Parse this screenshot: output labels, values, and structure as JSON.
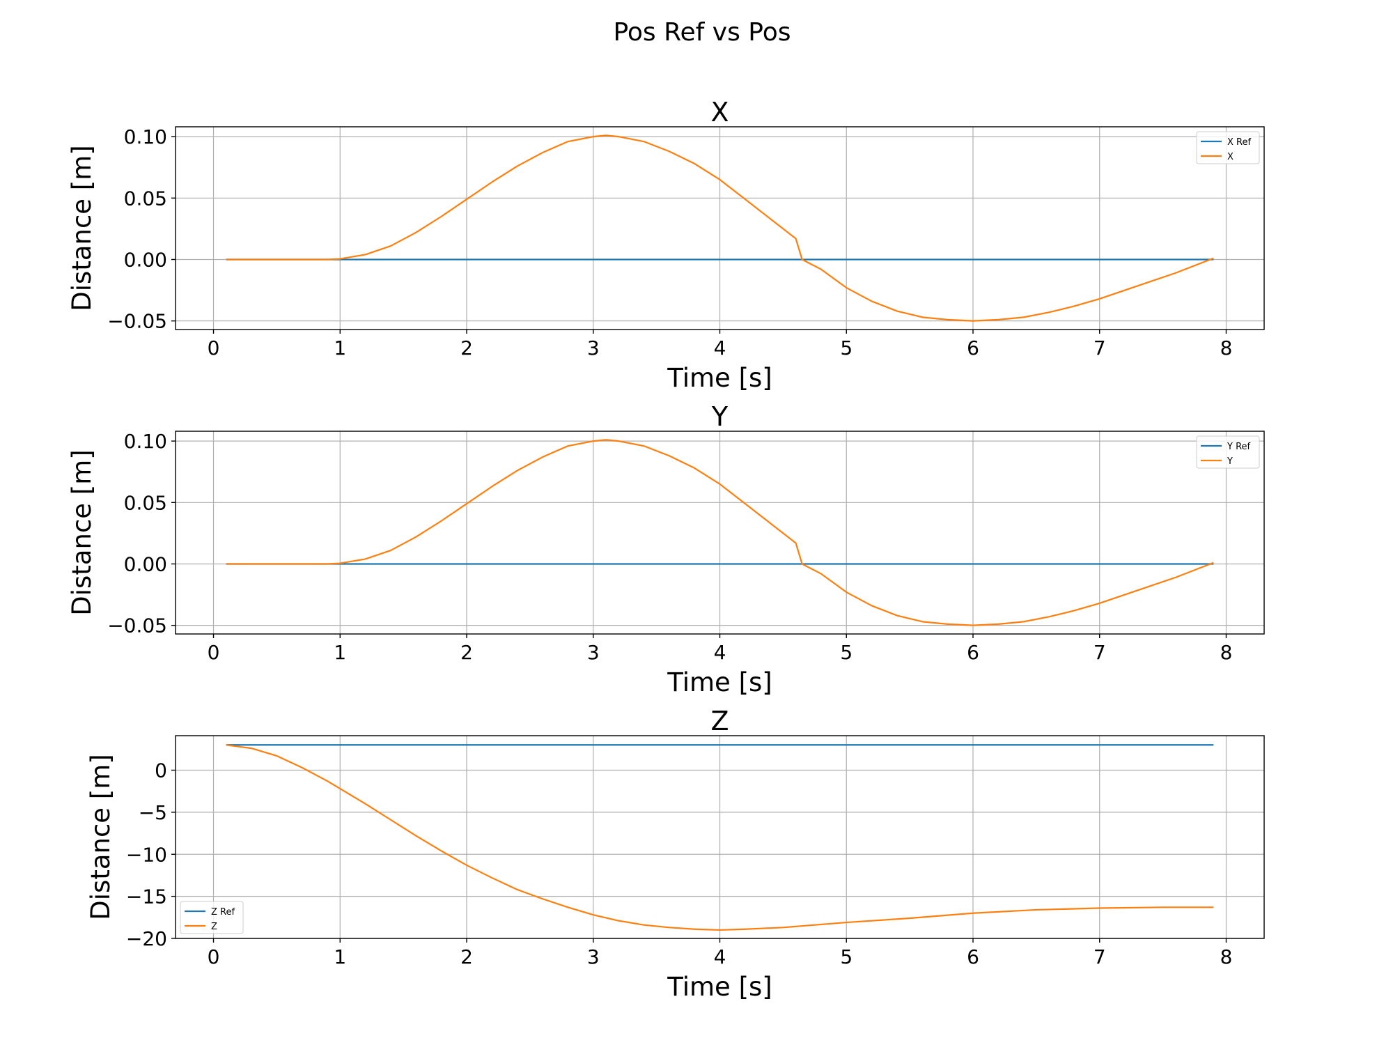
{
  "figure": {
    "suptitle": "Pos Ref vs Pos"
  },
  "colors": {
    "ref": "#1f77b4",
    "actual": "#ff7f0e",
    "grid": "#b0b0b0"
  },
  "chart_data": [
    {
      "type": "line",
      "title": "X",
      "xlabel": "Time [s]",
      "ylabel": "Distance [m]",
      "xlim": [
        -0.3,
        8.3
      ],
      "ylim": [
        -0.057,
        0.108
      ],
      "xticks": [
        0,
        1,
        2,
        3,
        4,
        5,
        6,
        7,
        8
      ],
      "xtick_labels": [
        "0",
        "1",
        "2",
        "3",
        "4",
        "5",
        "6",
        "7",
        "8"
      ],
      "yticks": [
        -0.05,
        0.0,
        0.05,
        0.1
      ],
      "ytick_labels": [
        "−0.05",
        "0.00",
        "0.05",
        "0.10"
      ],
      "grid": true,
      "legend": "upper-right",
      "series": [
        {
          "name": "X Ref",
          "color": "#1f77b4",
          "x": [
            0.1,
            7.9
          ],
          "y": [
            0.0,
            0.0
          ]
        },
        {
          "name": "X",
          "color": "#ff7f0e",
          "x": [
            0.1,
            0.5,
            0.9,
            1.0,
            1.2,
            1.4,
            1.6,
            1.8,
            2.0,
            2.2,
            2.4,
            2.6,
            2.8,
            3.0,
            3.1,
            3.2,
            3.4,
            3.6,
            3.8,
            4.0,
            4.2,
            4.4,
            4.6,
            4.65,
            4.8,
            5.0,
            5.2,
            5.4,
            5.6,
            5.8,
            6.0,
            6.2,
            6.4,
            6.6,
            6.8,
            7.0,
            7.2,
            7.4,
            7.6,
            7.8,
            7.9
          ],
          "y": [
            0.0,
            0.0,
            0.0,
            0.0005,
            0.004,
            0.011,
            0.022,
            0.035,
            0.049,
            0.063,
            0.076,
            0.087,
            0.096,
            0.1,
            0.101,
            0.1,
            0.096,
            0.088,
            0.078,
            0.065,
            0.049,
            0.033,
            0.017,
            0.0,
            -0.008,
            -0.023,
            -0.034,
            -0.042,
            -0.047,
            -0.049,
            -0.05,
            -0.049,
            -0.047,
            -0.043,
            -0.038,
            -0.032,
            -0.025,
            -0.018,
            -0.011,
            -0.003,
            0.001
          ]
        }
      ]
    },
    {
      "type": "line",
      "title": "Y",
      "xlabel": "Time [s]",
      "ylabel": "Distance [m]",
      "xlim": [
        -0.3,
        8.3
      ],
      "ylim": [
        -0.057,
        0.108
      ],
      "xticks": [
        0,
        1,
        2,
        3,
        4,
        5,
        6,
        7,
        8
      ],
      "xtick_labels": [
        "0",
        "1",
        "2",
        "3",
        "4",
        "5",
        "6",
        "7",
        "8"
      ],
      "yticks": [
        -0.05,
        0.0,
        0.05,
        0.1
      ],
      "ytick_labels": [
        "−0.05",
        "0.00",
        "0.05",
        "0.10"
      ],
      "grid": true,
      "legend": "upper-right",
      "series": [
        {
          "name": "Y Ref",
          "color": "#1f77b4",
          "x": [
            0.1,
            7.9
          ],
          "y": [
            0.0,
            0.0
          ]
        },
        {
          "name": "Y",
          "color": "#ff7f0e",
          "x": [
            0.1,
            0.5,
            0.9,
            1.0,
            1.2,
            1.4,
            1.6,
            1.8,
            2.0,
            2.2,
            2.4,
            2.6,
            2.8,
            3.0,
            3.1,
            3.2,
            3.4,
            3.6,
            3.8,
            4.0,
            4.2,
            4.4,
            4.6,
            4.65,
            4.8,
            5.0,
            5.2,
            5.4,
            5.6,
            5.8,
            6.0,
            6.2,
            6.4,
            6.6,
            6.8,
            7.0,
            7.2,
            7.4,
            7.6,
            7.8,
            7.9
          ],
          "y": [
            0.0,
            0.0,
            0.0,
            0.0005,
            0.004,
            0.011,
            0.022,
            0.035,
            0.049,
            0.063,
            0.076,
            0.087,
            0.096,
            0.1,
            0.101,
            0.1,
            0.096,
            0.088,
            0.078,
            0.065,
            0.049,
            0.033,
            0.017,
            0.0,
            -0.008,
            -0.023,
            -0.034,
            -0.042,
            -0.047,
            -0.049,
            -0.05,
            -0.049,
            -0.047,
            -0.043,
            -0.038,
            -0.032,
            -0.025,
            -0.018,
            -0.011,
            -0.003,
            0.001
          ]
        }
      ]
    },
    {
      "type": "line",
      "title": "Z",
      "xlabel": "Time [s]",
      "ylabel": "Distance [m]",
      "xlim": [
        -0.3,
        8.3
      ],
      "ylim": [
        -20,
        4.1
      ],
      "xticks": [
        0,
        1,
        2,
        3,
        4,
        5,
        6,
        7,
        8
      ],
      "xtick_labels": [
        "0",
        "1",
        "2",
        "3",
        "4",
        "5",
        "6",
        "7",
        "8"
      ],
      "yticks": [
        -20,
        -15,
        -10,
        -5,
        0
      ],
      "ytick_labels": [
        "−20",
        "−15",
        "−10",
        "−5",
        "0"
      ],
      "grid": true,
      "legend": "lower-left",
      "series": [
        {
          "name": "Z Ref",
          "color": "#1f77b4",
          "x": [
            0.1,
            7.9
          ],
          "y": [
            3.0,
            3.0
          ]
        },
        {
          "name": "Z",
          "color": "#ff7f0e",
          "x": [
            0.1,
            0.3,
            0.5,
            0.7,
            0.9,
            1.0,
            1.2,
            1.4,
            1.6,
            1.8,
            2.0,
            2.2,
            2.4,
            2.6,
            2.8,
            3.0,
            3.2,
            3.4,
            3.6,
            3.8,
            4.0,
            4.2,
            4.5,
            5.0,
            5.5,
            6.0,
            6.5,
            7.0,
            7.5,
            7.9
          ],
          "y": [
            3.0,
            2.6,
            1.7,
            0.3,
            -1.3,
            -2.2,
            -4.0,
            -5.9,
            -7.8,
            -9.6,
            -11.3,
            -12.8,
            -14.2,
            -15.3,
            -16.3,
            -17.2,
            -17.9,
            -18.4,
            -18.7,
            -18.9,
            -19.0,
            -18.9,
            -18.7,
            -18.1,
            -17.6,
            -17.0,
            -16.6,
            -16.4,
            -16.3,
            -16.3
          ]
        }
      ]
    }
  ]
}
